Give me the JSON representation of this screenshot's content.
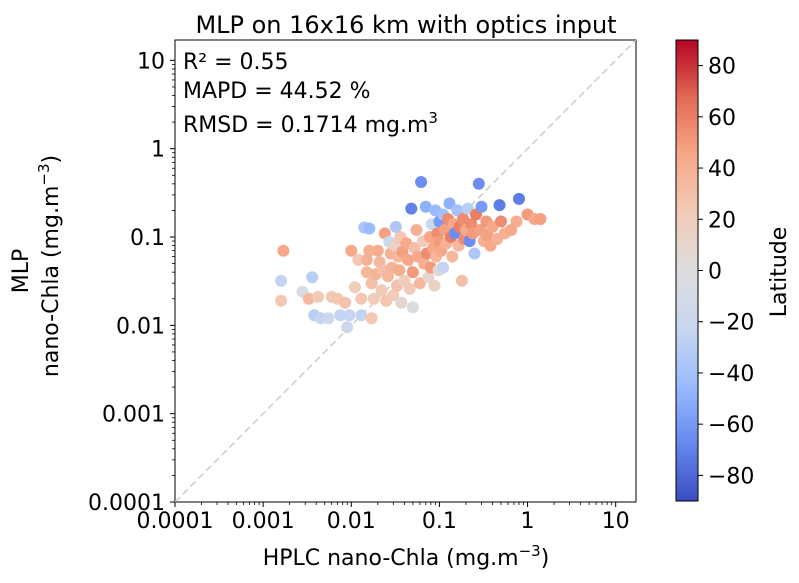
{
  "chart_data": {
    "type": "scatter",
    "title": "MLP on 16x16 km with optics input",
    "xlabel": "HPLC nano-Chla (mg.m",
    "xlabel_sup": "−3",
    "xlabel_end": ")",
    "ylabel_line1": "MLP",
    "ylabel_line2": "nano-Chla (mg.m",
    "ylabel_sup": "−3",
    "ylabel_end": ")",
    "xscale": "log",
    "yscale": "log",
    "xlim": [
      0.0001,
      17
    ],
    "ylim": [
      0.0001,
      17
    ],
    "x_ticks": [
      {
        "value": 0.0001,
        "label": "0.0001"
      },
      {
        "value": 0.001,
        "label": "0.001"
      },
      {
        "value": 0.01,
        "label": "0.01"
      },
      {
        "value": 0.1,
        "label": "0.1"
      },
      {
        "value": 1,
        "label": "1"
      },
      {
        "value": 10,
        "label": "10"
      }
    ],
    "y_ticks": [
      {
        "value": 0.0001,
        "label": "0.0001"
      },
      {
        "value": 0.001,
        "label": "0.001"
      },
      {
        "value": 0.01,
        "label": "0.01"
      },
      {
        "value": 0.1,
        "label": "0.1"
      },
      {
        "value": 1,
        "label": "1"
      },
      {
        "value": 10,
        "label": "10"
      }
    ],
    "one_to_one_line": true,
    "grid": false,
    "annotations": [
      {
        "text": "R² = 0.55"
      },
      {
        "text": "MAPD = 44.52 %"
      },
      {
        "text": "RMSD = 0.1714 mg.m",
        "sup": "3"
      }
    ],
    "colorbar": {
      "label": "Latitude",
      "colormap": "coolwarm",
      "range": [
        -90,
        90
      ],
      "ticks": [
        {
          "value": 80,
          "label": "80"
        },
        {
          "value": 60,
          "label": "60"
        },
        {
          "value": 40,
          "label": "40"
        },
        {
          "value": 20,
          "label": "20"
        },
        {
          "value": 0,
          "label": "0"
        },
        {
          "value": -20,
          "label": "−20"
        },
        {
          "value": -40,
          "label": "−40"
        },
        {
          "value": -60,
          "label": "−60"
        },
        {
          "value": -80,
          "label": "−80"
        }
      ],
      "colors": [
        "#3b4cc0",
        "#6788ee",
        "#9abbff",
        "#c9d7f0",
        "#dddddd",
        "#f2cbb7",
        "#f7a889",
        "#e36a53",
        "#b40426"
      ]
    },
    "points": [
      {
        "x": 0.0017,
        "y": 0.07,
        "lat": 45
      },
      {
        "x": 0.0016,
        "y": 0.019,
        "lat": 25
      },
      {
        "x": 0.0016,
        "y": 0.032,
        "lat": -25
      },
      {
        "x": 0.0028,
        "y": 0.024,
        "lat": -5
      },
      {
        "x": 0.0033,
        "y": 0.02,
        "lat": 35
      },
      {
        "x": 0.0036,
        "y": 0.035,
        "lat": -30
      },
      {
        "x": 0.0038,
        "y": 0.013,
        "lat": -30
      },
      {
        "x": 0.0042,
        "y": 0.021,
        "lat": 22
      },
      {
        "x": 0.0045,
        "y": 0.012,
        "lat": -25
      },
      {
        "x": 0.0055,
        "y": 0.012,
        "lat": -20
      },
      {
        "x": 0.006,
        "y": 0.021,
        "lat": 22
      },
      {
        "x": 0.007,
        "y": 0.02,
        "lat": 25
      },
      {
        "x": 0.0075,
        "y": 0.013,
        "lat": -25
      },
      {
        "x": 0.0085,
        "y": 0.018,
        "lat": 28
      },
      {
        "x": 0.009,
        "y": 0.0095,
        "lat": -20
      },
      {
        "x": 0.0095,
        "y": 0.013,
        "lat": -25
      },
      {
        "x": 0.01,
        "y": 0.07,
        "lat": 45
      },
      {
        "x": 0.011,
        "y": 0.027,
        "lat": 20
      },
      {
        "x": 0.012,
        "y": 0.055,
        "lat": 25
      },
      {
        "x": 0.013,
        "y": 0.013,
        "lat": -25
      },
      {
        "x": 0.013,
        "y": 0.02,
        "lat": 25
      },
      {
        "x": 0.014,
        "y": 0.128,
        "lat": -35
      },
      {
        "x": 0.015,
        "y": 0.055,
        "lat": 40
      },
      {
        "x": 0.015,
        "y": 0.04,
        "lat": 35
      },
      {
        "x": 0.016,
        "y": 0.125,
        "lat": -45
      },
      {
        "x": 0.016,
        "y": 0.07,
        "lat": 40
      },
      {
        "x": 0.017,
        "y": 0.03,
        "lat": 30
      },
      {
        "x": 0.017,
        "y": 0.012,
        "lat": 25
      },
      {
        "x": 0.018,
        "y": 0.02,
        "lat": 20
      },
      {
        "x": 0.019,
        "y": 0.038,
        "lat": 38
      },
      {
        "x": 0.02,
        "y": 0.07,
        "lat": 42
      },
      {
        "x": 0.021,
        "y": 0.052,
        "lat": 35
      },
      {
        "x": 0.022,
        "y": 0.025,
        "lat": 22
      },
      {
        "x": 0.023,
        "y": 0.042,
        "lat": 30
      },
      {
        "x": 0.024,
        "y": 0.11,
        "lat": 48
      },
      {
        "x": 0.025,
        "y": 0.019,
        "lat": 25
      },
      {
        "x": 0.026,
        "y": 0.036,
        "lat": 35
      },
      {
        "x": 0.027,
        "y": 0.088,
        "lat": -20
      },
      {
        "x": 0.028,
        "y": 0.065,
        "lat": 40
      },
      {
        "x": 0.029,
        "y": 0.045,
        "lat": 38
      },
      {
        "x": 0.03,
        "y": 0.022,
        "lat": 20
      },
      {
        "x": 0.031,
        "y": 0.08,
        "lat": 15
      },
      {
        "x": 0.032,
        "y": 0.13,
        "lat": -35
      },
      {
        "x": 0.033,
        "y": 0.028,
        "lat": 28
      },
      {
        "x": 0.034,
        "y": 0.06,
        "lat": 35
      },
      {
        "x": 0.035,
        "y": 0.042,
        "lat": 42
      },
      {
        "x": 0.036,
        "y": 0.1,
        "lat": 25
      },
      {
        "x": 0.037,
        "y": 0.018,
        "lat": 10
      },
      {
        "x": 0.038,
        "y": 0.068,
        "lat": 48
      },
      {
        "x": 0.04,
        "y": 0.032,
        "lat": 20
      },
      {
        "x": 0.042,
        "y": 0.085,
        "lat": 45
      },
      {
        "x": 0.044,
        "y": 0.055,
        "lat": 45
      },
      {
        "x": 0.046,
        "y": 0.026,
        "lat": 22
      },
      {
        "x": 0.048,
        "y": 0.21,
        "lat": -70
      },
      {
        "x": 0.05,
        "y": 0.016,
        "lat": -5
      },
      {
        "x": 0.05,
        "y": 0.04,
        "lat": 50
      },
      {
        "x": 0.052,
        "y": 0.075,
        "lat": 30
      },
      {
        "x": 0.055,
        "y": 0.12,
        "lat": 40
      },
      {
        "x": 0.057,
        "y": 0.06,
        "lat": 45
      },
      {
        "x": 0.06,
        "y": 0.03,
        "lat": 35
      },
      {
        "x": 0.062,
        "y": 0.42,
        "lat": -65
      },
      {
        "x": 0.065,
        "y": 0.09,
        "lat": 20
      },
      {
        "x": 0.067,
        "y": 0.05,
        "lat": 40
      },
      {
        "x": 0.07,
        "y": 0.22,
        "lat": -50
      },
      {
        "x": 0.072,
        "y": 0.065,
        "lat": 55
      },
      {
        "x": 0.075,
        "y": 0.035,
        "lat": 10
      },
      {
        "x": 0.078,
        "y": 0.1,
        "lat": 45
      },
      {
        "x": 0.08,
        "y": 0.045,
        "lat": 50
      },
      {
        "x": 0.082,
        "y": 0.14,
        "lat": -20
      },
      {
        "x": 0.085,
        "y": 0.075,
        "lat": 45
      },
      {
        "x": 0.088,
        "y": 0.028,
        "lat": 15
      },
      {
        "x": 0.09,
        "y": 0.2,
        "lat": -45
      },
      {
        "x": 0.092,
        "y": 0.06,
        "lat": 35
      },
      {
        "x": 0.095,
        "y": 0.11,
        "lat": 55
      },
      {
        "x": 0.098,
        "y": 0.042,
        "lat": 5
      },
      {
        "x": 0.1,
        "y": 0.15,
        "lat": -60
      },
      {
        "x": 0.1,
        "y": 0.09,
        "lat": 50
      },
      {
        "x": 0.105,
        "y": 0.07,
        "lat": 45
      },
      {
        "x": 0.11,
        "y": 0.18,
        "lat": -40
      },
      {
        "x": 0.11,
        "y": 0.045,
        "lat": -25
      },
      {
        "x": 0.115,
        "y": 0.12,
        "lat": 48
      },
      {
        "x": 0.12,
        "y": 0.085,
        "lat": 40
      },
      {
        "x": 0.125,
        "y": 0.16,
        "lat": 55
      },
      {
        "x": 0.13,
        "y": 0.24,
        "lat": -50
      },
      {
        "x": 0.135,
        "y": 0.1,
        "lat": 60
      },
      {
        "x": 0.14,
        "y": 0.06,
        "lat": 35
      },
      {
        "x": 0.145,
        "y": 0.14,
        "lat": 45
      },
      {
        "x": 0.15,
        "y": 0.11,
        "lat": -65
      },
      {
        "x": 0.16,
        "y": 0.2,
        "lat": -40
      },
      {
        "x": 0.165,
        "y": 0.08,
        "lat": 35
      },
      {
        "x": 0.17,
        "y": 0.13,
        "lat": 60
      },
      {
        "x": 0.18,
        "y": 0.032,
        "lat": 30
      },
      {
        "x": 0.185,
        "y": 0.16,
        "lat": 55
      },
      {
        "x": 0.19,
        "y": 0.095,
        "lat": 55
      },
      {
        "x": 0.2,
        "y": 0.12,
        "lat": 45
      },
      {
        "x": 0.21,
        "y": 0.21,
        "lat": -30
      },
      {
        "x": 0.22,
        "y": 0.09,
        "lat": -65
      },
      {
        "x": 0.23,
        "y": 0.14,
        "lat": 55
      },
      {
        "x": 0.24,
        "y": 0.11,
        "lat": 50
      },
      {
        "x": 0.25,
        "y": 0.065,
        "lat": -35
      },
      {
        "x": 0.26,
        "y": 0.18,
        "lat": 60
      },
      {
        "x": 0.28,
        "y": 0.4,
        "lat": -65
      },
      {
        "x": 0.29,
        "y": 0.12,
        "lat": 48
      },
      {
        "x": 0.3,
        "y": 0.22,
        "lat": -60
      },
      {
        "x": 0.32,
        "y": 0.09,
        "lat": 40
      },
      {
        "x": 0.34,
        "y": 0.15,
        "lat": 50
      },
      {
        "x": 0.35,
        "y": 0.105,
        "lat": 48
      },
      {
        "x": 0.38,
        "y": 0.08,
        "lat": 45
      },
      {
        "x": 0.4,
        "y": 0.13,
        "lat": 45
      },
      {
        "x": 0.45,
        "y": 0.095,
        "lat": 40
      },
      {
        "x": 0.48,
        "y": 0.23,
        "lat": -72
      },
      {
        "x": 0.5,
        "y": 0.15,
        "lat": 55
      },
      {
        "x": 0.55,
        "y": 0.11,
        "lat": 40
      },
      {
        "x": 0.65,
        "y": 0.12,
        "lat": 45
      },
      {
        "x": 0.75,
        "y": 0.15,
        "lat": 42
      },
      {
        "x": 0.8,
        "y": 0.27,
        "lat": -72
      },
      {
        "x": 1.0,
        "y": 0.18,
        "lat": 50
      },
      {
        "x": 1.2,
        "y": 0.16,
        "lat": 45
      },
      {
        "x": 1.4,
        "y": 0.16,
        "lat": 48
      }
    ]
  }
}
